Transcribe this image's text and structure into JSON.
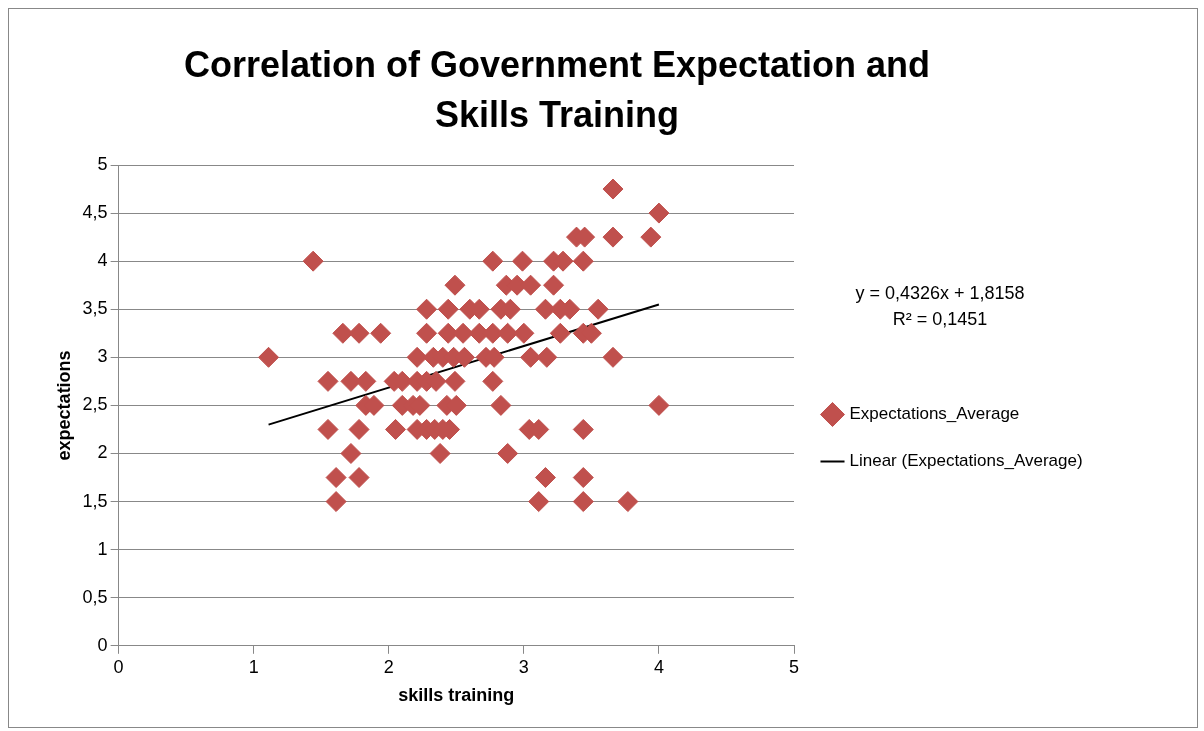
{
  "chart_data": {
    "type": "scatter",
    "title": "Correlation of Government Expectation and Skills Training",
    "xlabel": "skills training",
    "ylabel": "expectations",
    "xlim": [
      0,
      5
    ],
    "xticks": [
      0,
      1,
      2,
      3,
      4,
      5
    ],
    "ylim": [
      0,
      5
    ],
    "yticks": [
      {
        "value": 0,
        "label": "0"
      },
      {
        "value": 0.5,
        "label": "0,5"
      },
      {
        "value": 1,
        "label": "1"
      },
      {
        "value": 1.5,
        "label": "1,5"
      },
      {
        "value": 2,
        "label": "2"
      },
      {
        "value": 2.5,
        "label": "2,5"
      },
      {
        "value": 3,
        "label": "3"
      },
      {
        "value": 3.5,
        "label": "3,5"
      },
      {
        "value": 4,
        "label": "4"
      },
      {
        "value": 4.5,
        "label": "4,5"
      },
      {
        "value": 5,
        "label": "5"
      }
    ],
    "grid": "y",
    "legend": "right",
    "marker": "diamond",
    "annotations": [
      "y = 0,4326x + 1,8158",
      "R² = 0,1451"
    ],
    "series": [
      {
        "name": "Expectations_Average",
        "color": "#c0504d",
        "x": [
          3.66,
          4.0,
          3.39,
          3.45,
          3.66,
          3.94,
          1.44,
          2.77,
          2.99,
          3.22,
          3.29,
          3.44,
          2.49,
          2.87,
          2.95,
          3.05,
          3.22,
          2.28,
          2.44,
          2.6,
          2.67,
          2.83,
          2.9,
          3.16,
          3.27,
          3.34,
          3.55,
          1.66,
          1.78,
          1.94,
          2.28,
          2.44,
          2.55,
          2.67,
          2.77,
          2.88,
          3.0,
          3.27,
          3.44,
          3.5,
          1.11,
          2.21,
          2.33,
          2.4,
          2.48,
          2.56,
          2.72,
          2.78,
          3.05,
          3.17,
          3.66,
          1.55,
          1.72,
          1.83,
          2.04,
          2.1,
          2.21,
          2.28,
          2.35,
          2.49,
          2.77,
          1.83,
          1.89,
          2.1,
          2.18,
          2.23,
          2.43,
          2.5,
          2.83,
          4.0,
          1.55,
          1.78,
          2.05,
          2.21,
          2.28,
          2.34,
          2.4,
          2.45,
          3.04,
          3.11,
          3.44,
          1.72,
          2.38,
          2.88,
          1.61,
          1.78,
          3.16,
          3.44,
          1.61,
          3.11,
          3.44,
          3.77
        ],
        "values": [
          4.75,
          4.5,
          4.25,
          4.25,
          4.25,
          4.25,
          4,
          4,
          4,
          4,
          4,
          4,
          3.75,
          3.75,
          3.75,
          3.75,
          3.75,
          3.5,
          3.5,
          3.5,
          3.5,
          3.5,
          3.5,
          3.5,
          3.5,
          3.5,
          3.5,
          3.25,
          3.25,
          3.25,
          3.25,
          3.25,
          3.25,
          3.25,
          3.25,
          3.25,
          3.25,
          3.25,
          3.25,
          3.25,
          3,
          3,
          3,
          3,
          3,
          3,
          3,
          3,
          3,
          3,
          3,
          2.75,
          2.75,
          2.75,
          2.75,
          2.75,
          2.75,
          2.75,
          2.75,
          2.75,
          2.75,
          2.5,
          2.5,
          2.5,
          2.5,
          2.5,
          2.5,
          2.5,
          2.5,
          2.5,
          2.25,
          2.25,
          2.25,
          2.25,
          2.25,
          2.25,
          2.25,
          2.25,
          2.25,
          2.25,
          2.25,
          2,
          2,
          2,
          1.75,
          1.75,
          1.75,
          1.75,
          1.5,
          1.5,
          1.5,
          1.5
        ]
      },
      {
        "name": "Linear (Expectations_Average)",
        "type": "line",
        "color": "#000000",
        "marker": "none",
        "line_style": "solid",
        "x": [
          1.11,
          4.0
        ],
        "values": [
          2.3,
          3.55
        ]
      }
    ]
  }
}
